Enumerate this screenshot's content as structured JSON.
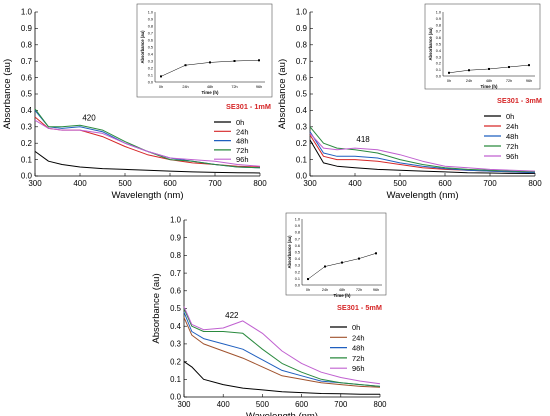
{
  "chart_data": [
    {
      "type": "line",
      "title": "",
      "xlabel": "Wavelength (nm)",
      "ylabel": "Absorbance (au)",
      "xlim": [
        300,
        800
      ],
      "ylim": [
        0.0,
        1.0
      ],
      "xticks": [
        300,
        400,
        500,
        600,
        700,
        800
      ],
      "yticks": [
        0.0,
        0.1,
        0.2,
        0.3,
        0.4,
        0.5,
        0.6,
        0.7,
        0.8,
        0.9,
        1.0
      ],
      "grid": false,
      "legend": "right",
      "label_tag": "SE301 - 1mM",
      "annotation": {
        "text": "420",
        "x": 420,
        "y": 0.32
      },
      "series": [
        {
          "name": "0h",
          "color": "#000000",
          "x": [
            300,
            330,
            360,
            400,
            450,
            500,
            550,
            600,
            650,
            700,
            750,
            800
          ],
          "y": [
            0.15,
            0.09,
            0.07,
            0.055,
            0.045,
            0.04,
            0.035,
            0.03,
            0.025,
            0.022,
            0.02,
            0.018
          ]
        },
        {
          "name": "24h",
          "color": "#d62728",
          "x": [
            300,
            330,
            360,
            400,
            450,
            500,
            550,
            600,
            650,
            700,
            750,
            800
          ],
          "y": [
            0.36,
            0.29,
            0.28,
            0.28,
            0.24,
            0.18,
            0.13,
            0.1,
            0.08,
            0.07,
            0.06,
            0.055
          ]
        },
        {
          "name": "48h",
          "color": "#1f5fbf",
          "x": [
            300,
            330,
            360,
            400,
            450,
            500,
            550,
            600,
            650,
            700,
            750,
            800
          ],
          "y": [
            0.4,
            0.3,
            0.29,
            0.3,
            0.27,
            0.2,
            0.15,
            0.11,
            0.09,
            0.07,
            0.055,
            0.05
          ]
        },
        {
          "name": "72h",
          "color": "#2a8a3e",
          "x": [
            300,
            330,
            360,
            400,
            450,
            500,
            550,
            600,
            650,
            700,
            750,
            800
          ],
          "y": [
            0.41,
            0.3,
            0.3,
            0.31,
            0.28,
            0.21,
            0.15,
            0.1,
            0.09,
            0.07,
            0.055,
            0.05
          ]
        },
        {
          "name": "96h",
          "color": "#c060d0",
          "x": [
            300,
            330,
            360,
            400,
            450,
            500,
            550,
            600,
            650,
            700,
            750,
            800
          ],
          "y": [
            0.34,
            0.29,
            0.28,
            0.28,
            0.26,
            0.2,
            0.15,
            0.11,
            0.1,
            0.09,
            0.07,
            0.06
          ]
        }
      ],
      "inset": {
        "xlabel": "Time (h)",
        "ylabel": "Absorbance (au)",
        "ylim": [
          0.0,
          1.0
        ],
        "yticks": [
          0.0,
          0.1,
          0.2,
          0.3,
          0.4,
          0.5,
          0.6,
          0.7,
          0.8,
          0.9,
          1.0
        ],
        "categories": [
          "0h",
          "24h",
          "48h",
          "72h",
          "96h"
        ],
        "values": [
          0.08,
          0.24,
          0.28,
          0.3,
          0.31
        ]
      }
    },
    {
      "type": "line",
      "title": "",
      "xlabel": "Wavelength (nm)",
      "ylabel": "Absorbance (au)",
      "xlim": [
        300,
        800
      ],
      "ylim": [
        0.0,
        1.0
      ],
      "xticks": [
        300,
        400,
        500,
        600,
        700,
        800
      ],
      "yticks": [
        0.0,
        0.1,
        0.2,
        0.3,
        0.4,
        0.5,
        0.6,
        0.7,
        0.8,
        0.9,
        1.0
      ],
      "grid": false,
      "legend": "right",
      "label_tag": "SE301 - 3mM",
      "annotation": {
        "text": "418",
        "x": 418,
        "y": 0.19
      },
      "series": [
        {
          "name": "0h",
          "color": "#000000",
          "x": [
            300,
            330,
            360,
            400,
            450,
            500,
            550,
            600,
            650,
            700,
            750,
            800
          ],
          "y": [
            0.22,
            0.08,
            0.06,
            0.05,
            0.04,
            0.035,
            0.03,
            0.025,
            0.02,
            0.018,
            0.016,
            0.015
          ]
        },
        {
          "name": "24h",
          "color": "#d62728",
          "x": [
            300,
            330,
            360,
            400,
            450,
            500,
            550,
            600,
            650,
            700,
            750,
            800
          ],
          "y": [
            0.25,
            0.12,
            0.1,
            0.1,
            0.09,
            0.07,
            0.05,
            0.04,
            0.035,
            0.03,
            0.025,
            0.02
          ]
        },
        {
          "name": "48h",
          "color": "#1f5fbf",
          "x": [
            300,
            330,
            360,
            400,
            450,
            500,
            550,
            600,
            650,
            700,
            750,
            800
          ],
          "y": [
            0.27,
            0.14,
            0.12,
            0.12,
            0.11,
            0.08,
            0.06,
            0.045,
            0.035,
            0.03,
            0.025,
            0.02
          ]
        },
        {
          "name": "72h",
          "color": "#2a8a3e",
          "x": [
            300,
            330,
            360,
            400,
            450,
            500,
            550,
            600,
            650,
            700,
            750,
            800
          ],
          "y": [
            0.3,
            0.2,
            0.17,
            0.16,
            0.14,
            0.1,
            0.07,
            0.05,
            0.04,
            0.035,
            0.03,
            0.025
          ]
        },
        {
          "name": "96h",
          "color": "#c060d0",
          "x": [
            300,
            330,
            360,
            400,
            450,
            500,
            550,
            600,
            650,
            700,
            750,
            800
          ],
          "y": [
            0.26,
            0.17,
            0.16,
            0.17,
            0.16,
            0.13,
            0.09,
            0.06,
            0.05,
            0.04,
            0.035,
            0.03
          ]
        }
      ],
      "inset": {
        "xlabel": "Time (h)",
        "ylabel": "Absorbance (au)",
        "ylim": [
          0.0,
          1.0
        ],
        "yticks": [
          0.0,
          0.1,
          0.2,
          0.3,
          0.4,
          0.5,
          0.6,
          0.7,
          0.8,
          0.9,
          1.0
        ],
        "categories": [
          "0h",
          "24h",
          "48h",
          "72h",
          "96h"
        ],
        "values": [
          0.05,
          0.09,
          0.11,
          0.14,
          0.17
        ]
      }
    },
    {
      "type": "line",
      "title": "",
      "xlabel": "Wavelength (nm)",
      "ylabel": "Absorbance (au)",
      "xlim": [
        300,
        800
      ],
      "ylim": [
        0.0,
        1.0
      ],
      "xticks": [
        300,
        400,
        500,
        600,
        700,
        800
      ],
      "yticks": [
        0.0,
        0.1,
        0.2,
        0.3,
        0.4,
        0.5,
        0.6,
        0.7,
        0.8,
        0.9,
        1.0
      ],
      "grid": false,
      "legend": "right",
      "label_tag": "SE301 - 5mM",
      "annotation": {
        "text": "422",
        "x": 422,
        "y": 0.43
      },
      "series": [
        {
          "name": "0h",
          "color": "#000000",
          "x": [
            300,
            320,
            350,
            400,
            450,
            500,
            550,
            600,
            650,
            700,
            750,
            800
          ],
          "y": [
            0.2,
            0.17,
            0.1,
            0.07,
            0.05,
            0.04,
            0.03,
            0.025,
            0.02,
            0.018,
            0.016,
            0.015
          ]
        },
        {
          "name": "24h",
          "color": "#a0522d",
          "x": [
            300,
            320,
            350,
            400,
            450,
            500,
            550,
            600,
            650,
            700,
            750,
            800
          ],
          "y": [
            0.45,
            0.35,
            0.3,
            0.26,
            0.22,
            0.17,
            0.12,
            0.1,
            0.08,
            0.07,
            0.06,
            0.055
          ]
        },
        {
          "name": "48h",
          "color": "#1f5fbf",
          "x": [
            300,
            320,
            350,
            400,
            450,
            500,
            550,
            600,
            650,
            700,
            750,
            800
          ],
          "y": [
            0.48,
            0.37,
            0.33,
            0.3,
            0.27,
            0.21,
            0.15,
            0.12,
            0.09,
            0.08,
            0.07,
            0.06
          ]
        },
        {
          "name": "72h",
          "color": "#2a8a3e",
          "x": [
            300,
            320,
            350,
            400,
            450,
            500,
            550,
            600,
            650,
            700,
            750,
            800
          ],
          "y": [
            0.5,
            0.4,
            0.37,
            0.37,
            0.36,
            0.27,
            0.19,
            0.14,
            0.1,
            0.08,
            0.07,
            0.06
          ]
        },
        {
          "name": "96h",
          "color": "#c060d0",
          "x": [
            300,
            320,
            350,
            400,
            450,
            500,
            550,
            600,
            650,
            700,
            750,
            800
          ],
          "y": [
            0.51,
            0.41,
            0.38,
            0.39,
            0.43,
            0.36,
            0.26,
            0.19,
            0.14,
            0.11,
            0.09,
            0.075
          ]
        }
      ],
      "inset": {
        "xlabel": "Time (h)",
        "ylabel": "Absorbance (au)",
        "ylim": [
          0.0,
          1.0
        ],
        "yticks": [
          0.0,
          0.1,
          0.2,
          0.3,
          0.4,
          0.5,
          0.6,
          0.7,
          0.8,
          0.9,
          1.0
        ],
        "categories": [
          "0h",
          "24h",
          "48h",
          "72h",
          "96h"
        ],
        "values": [
          0.09,
          0.28,
          0.34,
          0.4,
          0.48
        ]
      }
    }
  ]
}
